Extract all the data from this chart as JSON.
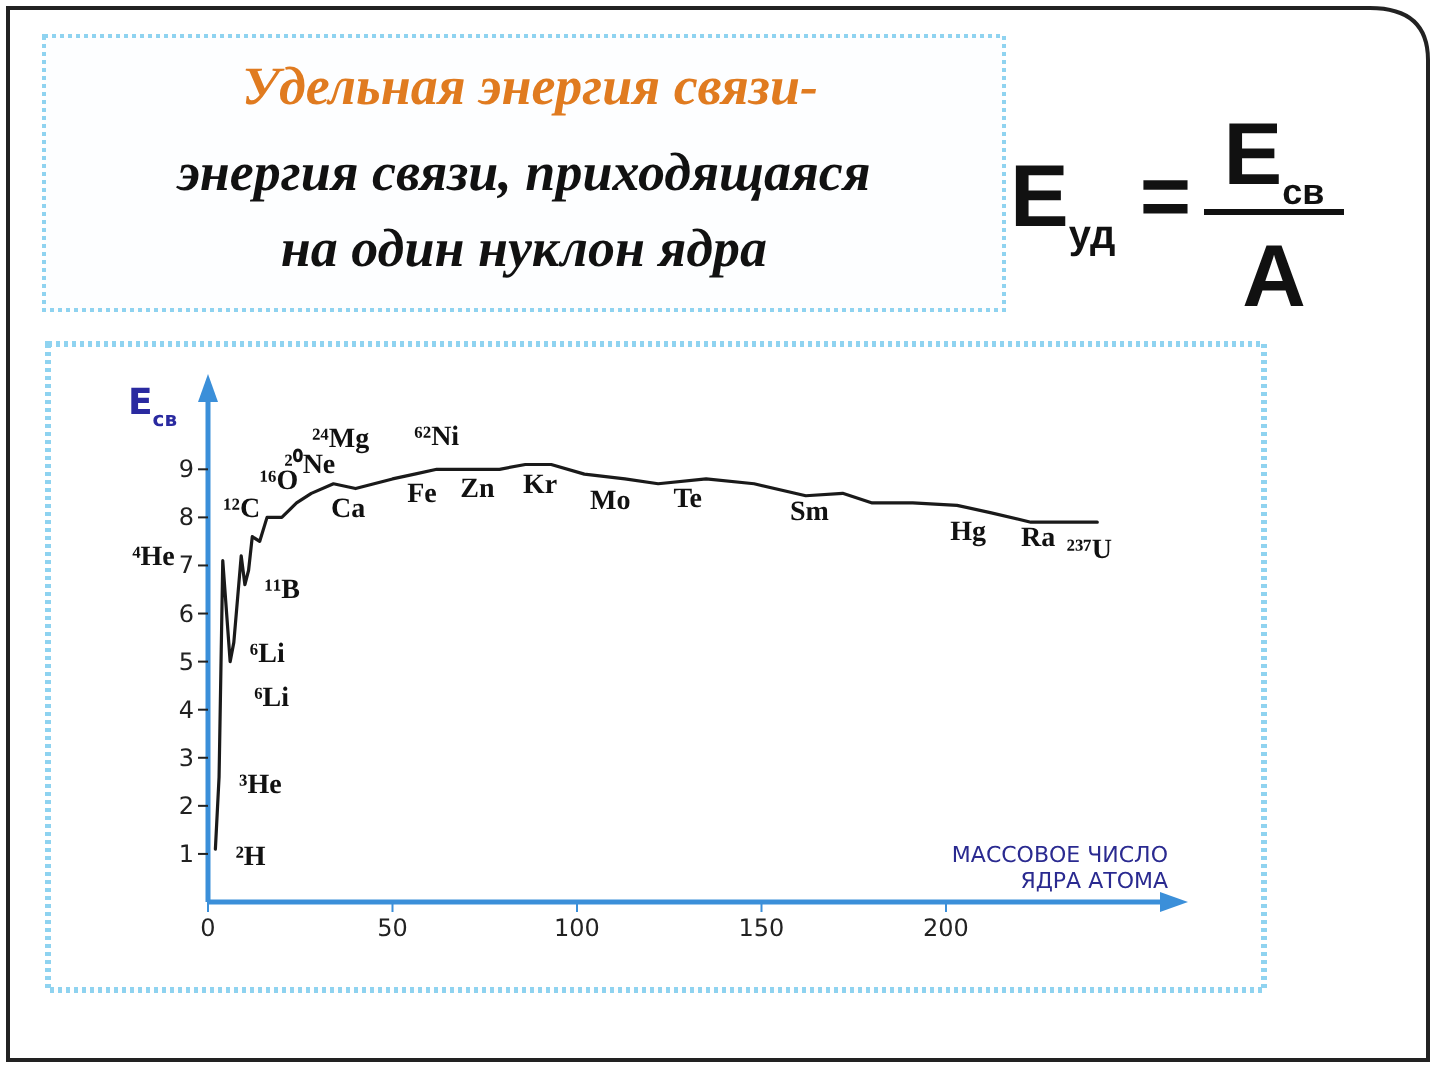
{
  "chart_data": {
    "type": "line",
    "title": "Удельная энергия связи-",
    "subtitle": "энергия связи, приходящаяся на один нуклон ядра",
    "ylabel": "E$_{св}$",
    "xlabel": "МАССОВОЕ ЧИСЛО\nЯДРА АТОМА",
    "x": [
      2,
      3,
      4,
      6,
      7,
      9,
      10,
      11,
      12,
      14,
      16,
      20,
      24,
      28,
      34,
      40,
      50,
      56,
      62,
      70,
      79,
      86,
      93,
      102,
      113,
      122,
      135,
      148,
      162,
      172,
      180,
      191,
      203,
      212,
      223,
      234,
      241
    ],
    "series": [
      {
        "color": "#1a1a1a",
        "values": [
          1.1,
          2.6,
          7.1,
          5.0,
          5.4,
          7.2,
          6.6,
          6.9,
          7.6,
          7.5,
          8.0,
          8.0,
          8.3,
          8.5,
          8.7,
          8.6,
          8.8,
          8.9,
          9.0,
          9.0,
          9.0,
          9.1,
          9.1,
          8.9,
          8.8,
          8.7,
          8.8,
          8.7,
          8.45,
          8.5,
          8.3,
          8.3,
          8.25,
          8.1,
          7.9,
          7.9,
          7.9
        ]
      }
    ],
    "xlim": [
      0,
      258
    ],
    "ylim": [
      0,
      10.4
    ],
    "xticks": [
      0,
      50,
      100,
      150,
      200
    ],
    "yticks": [
      1,
      2,
      3,
      4,
      5,
      6,
      7,
      8,
      9
    ],
    "grid": false,
    "marker": "none",
    "line_style": "solid",
    "annotations": [
      {
        "text": "²H",
        "x": 2,
        "y": 1.1
      },
      {
        "text": "³He",
        "x": 3,
        "y": 2.6
      },
      {
        "text": "⁴He",
        "x": 4,
        "y": 7.1
      },
      {
        "text": "⁶Li",
        "x": 7,
        "y": 5.4
      },
      {
        "text": "⁶Li",
        "x": 6,
        "y": 5.0
      },
      {
        "text": "¹¹B",
        "x": 11,
        "y": 6.9
      },
      {
        "text": "¹²C",
        "x": 12,
        "y": 7.6
      },
      {
        "text": "¹⁶O",
        "x": 16,
        "y": 8.0
      },
      {
        "text": "²⁰Ne",
        "x": 20,
        "y": 8.0
      },
      {
        "text": "²⁴Mg",
        "x": 24,
        "y": 8.3
      },
      {
        "text": "⁶²Ni",
        "x": 62,
        "y": 9.0
      },
      {
        "text": "Ca",
        "x": 38,
        "y": 8.6
      },
      {
        "text": "Fe",
        "x": 58,
        "y": 8.9
      },
      {
        "text": "Zn",
        "x": 73,
        "y": 9.0
      },
      {
        "text": "Kr",
        "x": 90,
        "y": 9.1
      },
      {
        "text": "Mo",
        "x": 109,
        "y": 8.85
      },
      {
        "text": "Te",
        "x": 130,
        "y": 8.8
      },
      {
        "text": "Sm",
        "x": 163,
        "y": 8.45
      },
      {
        "text": "Hg",
        "x": 206,
        "y": 8.2
      },
      {
        "text": "Ra",
        "x": 225,
        "y": 7.9
      },
      {
        "text": "²³⁷U",
        "x": 237,
        "y": 7.9
      },
      "E$_{уд}$ =",
      "E$_{св}$",
      "A"
    ]
  }
}
